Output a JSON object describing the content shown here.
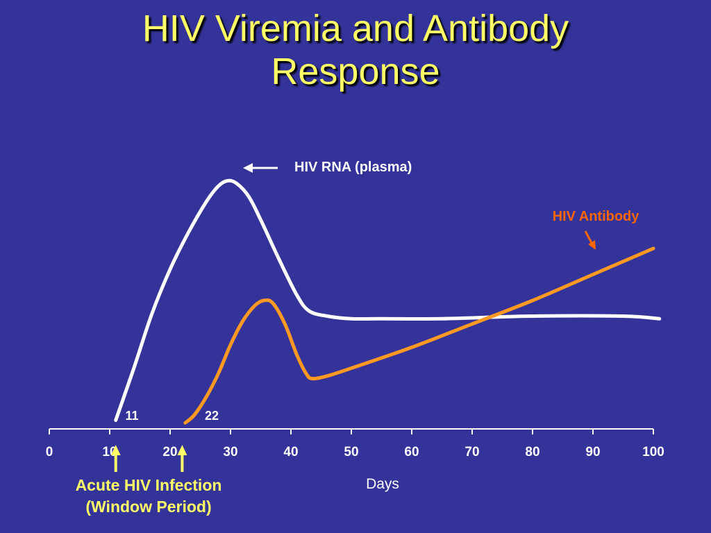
{
  "slide": {
    "title_line1": "HIV Viremia and Antibody",
    "title_line2": "Response"
  },
  "colors": {
    "background": "#333399",
    "title": "#ffff66",
    "rna_line": "#ffffff",
    "antibody_line": "#ff9922",
    "antibody_label": "#ff6600",
    "window_arrows": "#ffff66"
  },
  "chart_data": {
    "type": "line",
    "title": "HIV Viremia and Antibody Response",
    "xlabel": "Days",
    "ylabel": "",
    "xlim": [
      0,
      100
    ],
    "ylim": [
      0,
      100
    ],
    "x_ticks": [
      0,
      10,
      20,
      30,
      40,
      50,
      60,
      70,
      80,
      90,
      100
    ],
    "grid": false,
    "series": [
      {
        "name": "HIV RNA (plasma)",
        "color": "#ffffff",
        "x": [
          11,
          14,
          17,
          20,
          23,
          26,
          28,
          29.5,
          31,
          33,
          35,
          38,
          41,
          43,
          46,
          50,
          55,
          65,
          80,
          95,
          101
        ],
        "y": [
          2,
          22,
          43,
          60,
          74,
          86,
          92,
          94,
          93,
          88,
          79,
          64,
          50,
          44,
          42,
          41,
          41,
          41,
          42,
          42,
          41
        ]
      },
      {
        "name": "HIV Antibody",
        "color": "#ff9922",
        "x": [
          22.5,
          24,
          26,
          28,
          30,
          32,
          34,
          35.5,
          37,
          39,
          41,
          42.5,
          43.5,
          46,
          50,
          60,
          70,
          80,
          90,
          100
        ],
        "y": [
          1,
          4,
          11,
          20,
          31,
          40,
          46,
          48,
          47,
          39,
          27,
          20,
          18,
          19,
          22,
          30,
          39,
          48,
          58,
          68
        ]
      }
    ],
    "annotations": {
      "rna_label": "HIV RNA (plasma)",
      "antibody_label": "HIV Antibody",
      "point_11": "11",
      "point_22": "22",
      "window_line1": "Acute HIV Infection",
      "window_line2": "(Window Period)",
      "window_arrow_days": [
        11,
        22
      ]
    }
  }
}
